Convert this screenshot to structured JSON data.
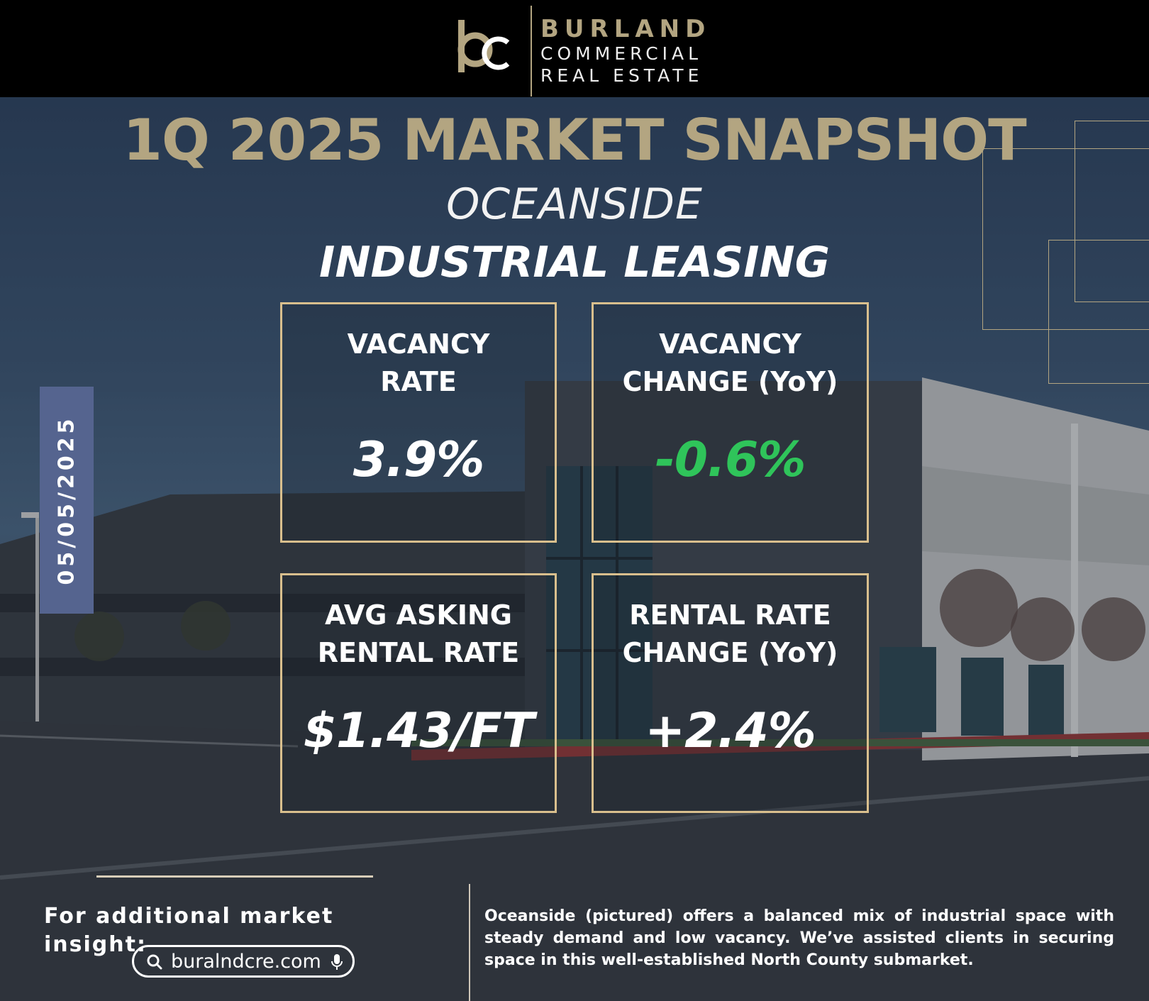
{
  "brand": {
    "line1": "BURLAND",
    "line2": "COMMERCIAL",
    "line3": "REAL ESTATE",
    "gold_color": "#b3a581",
    "logo_icon": "bc-monogram-icon"
  },
  "title": "1Q 2025 MARKET SNAPSHOT",
  "subtitle": "OCEANSIDE",
  "headline": "INDUSTRIAL LEASING",
  "date": "05/05/2025",
  "stats": [
    {
      "label": "VACANCY\nRATE",
      "value": "3.9%",
      "value_color": "#ffffff"
    },
    {
      "label": "VACANCY\nCHANGE (YoY)",
      "value": "-0.6%",
      "value_color": "#2fc45a"
    },
    {
      "label": "AVG ASKING\nRENTAL RATE",
      "value": "$1.43/FT",
      "value_color": "#ffffff"
    },
    {
      "label": "RENTAL RATE\nCHANGE (YoY)",
      "value": "+2.4%",
      "value_color": "#ffffff"
    }
  ],
  "footer": {
    "insight_label": "For additional market insight:",
    "search_text": "buralndcre.com",
    "description": "Oceanside (pictured) offers a balanced mix of industrial space with steady demand and low vacancy. We’ve assisted clients in securing space in this well-established North County submarket."
  }
}
